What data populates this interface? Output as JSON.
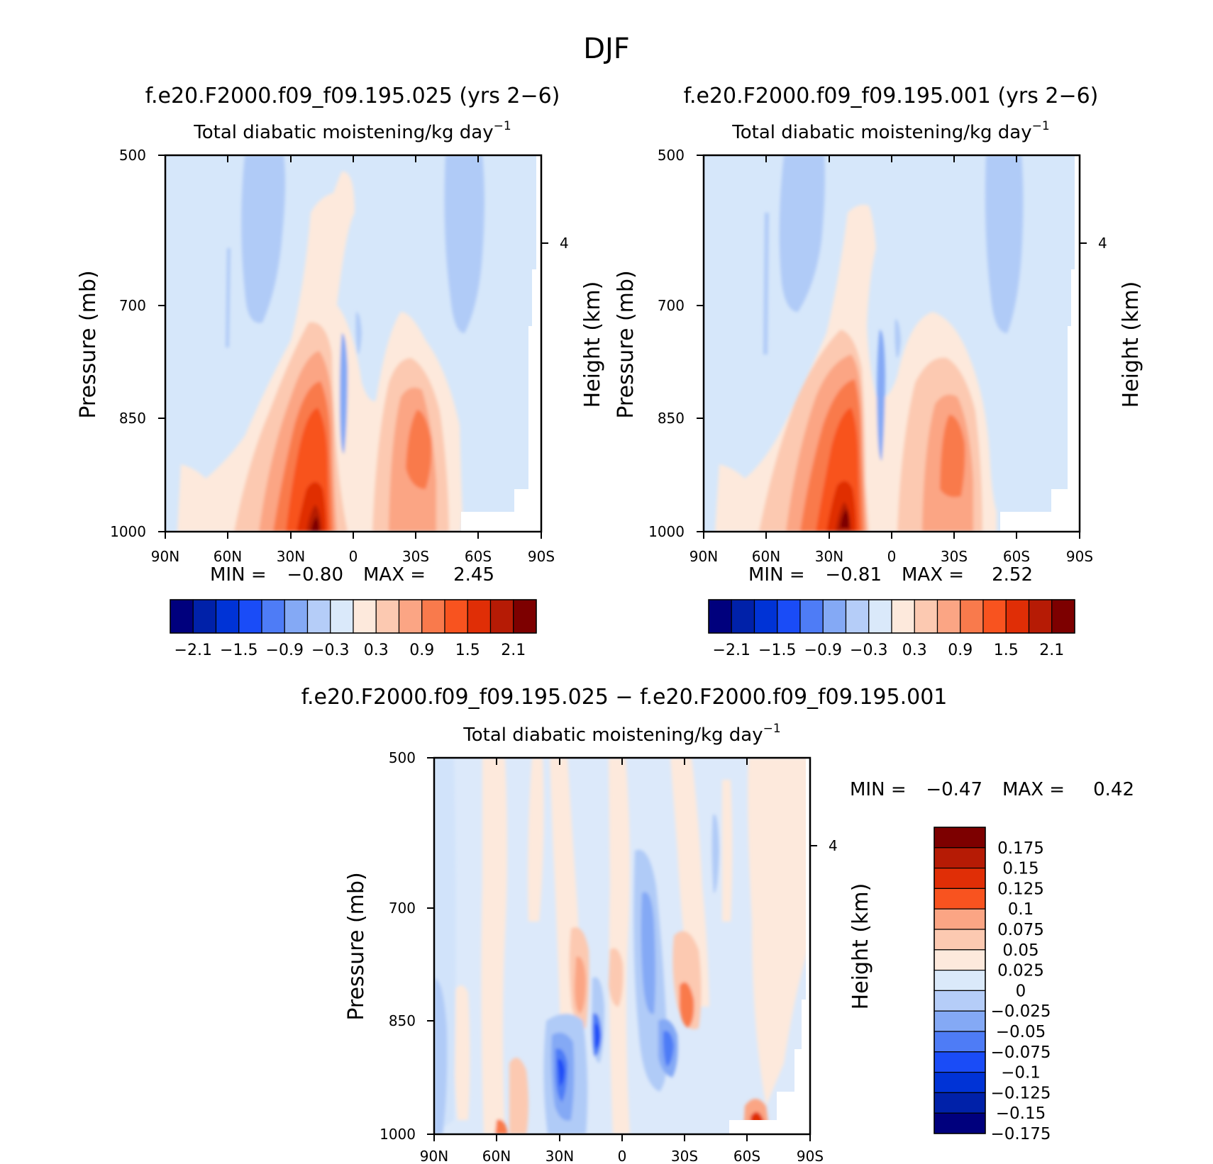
{
  "figure_title": "DJF",
  "chart_data": [
    {
      "type": "contour",
      "id": "panel-025",
      "title": "f.e20.F2000.f09_f09.195.025 (yrs 2−6)",
      "subtitle_text": "Total diabatic moistening/kg day",
      "subtitle_sup": "−1",
      "ylabel": "Pressure (mb)",
      "ylabel_right": "Height (km)",
      "x_ticks": [
        "90N",
        "60N",
        "30N",
        "0",
        "30S",
        "60S",
        "90S"
      ],
      "y_ticks": [
        "500",
        "700",
        "850",
        "1000"
      ],
      "ylim": [
        1000,
        500
      ],
      "right_ticks": [
        "4"
      ],
      "min_label": "MIN =",
      "min_value": "−0.80",
      "max_label": "MAX =",
      "max_value": "2.45",
      "colorbar_labels": [
        "−2.1",
        "−1.5",
        "−0.9",
        "−0.3",
        "0.3",
        "0.9",
        "1.5",
        "2.1"
      ],
      "colorbar_colors": [
        "#00007d",
        "#0021a9",
        "#0033d6",
        "#1a4cf7",
        "#4e7cf6",
        "#84a9f5",
        "#b5cdf8",
        "#dae9fa",
        "#fde9dc",
        "#fcc9b1",
        "#fba584",
        "#f97a4c",
        "#f8531f",
        "#e02e06",
        "#b61b05",
        "#7d0000"
      ]
    },
    {
      "type": "contour",
      "id": "panel-001",
      "title": "f.e20.F2000.f09_f09.195.001 (yrs 2−6)",
      "subtitle_text": "Total diabatic moistening/kg day",
      "subtitle_sup": "−1",
      "ylabel": "Pressure (mb)",
      "ylabel_right": "Height (km)",
      "x_ticks": [
        "90N",
        "60N",
        "30N",
        "0",
        "30S",
        "60S",
        "90S"
      ],
      "y_ticks": [
        "500",
        "700",
        "850",
        "1000"
      ],
      "ylim": [
        1000,
        500
      ],
      "right_ticks": [
        "4"
      ],
      "min_label": "MIN =",
      "min_value": "−0.81",
      "max_label": "MAX =",
      "max_value": "2.52",
      "colorbar_labels": [
        "−2.1",
        "−1.5",
        "−0.9",
        "−0.3",
        "0.3",
        "0.9",
        "1.5",
        "2.1"
      ],
      "colorbar_colors": [
        "#00007d",
        "#0021a9",
        "#0033d6",
        "#1a4cf7",
        "#4e7cf6",
        "#84a9f5",
        "#b5cdf8",
        "#dae9fa",
        "#fde9dc",
        "#fcc9b1",
        "#fba584",
        "#f97a4c",
        "#f8531f",
        "#e02e06",
        "#b61b05",
        "#7d0000"
      ]
    },
    {
      "type": "contour",
      "id": "panel-diff",
      "title": "f.e20.F2000.f09_f09.195.025 − f.e20.F2000.f09_f09.195.001",
      "subtitle_text": "Total diabatic moistening/kg day",
      "subtitle_sup": "−1",
      "ylabel": "Pressure (mb)",
      "ylabel_right": "Height (km)",
      "x_ticks": [
        "90N",
        "60N",
        "30N",
        "0",
        "30S",
        "60S",
        "90S"
      ],
      "y_ticks": [
        "500",
        "700",
        "850",
        "1000"
      ],
      "ylim": [
        1000,
        500
      ],
      "right_ticks": [
        "4"
      ],
      "min_label": "MIN =",
      "min_value": "−0.47",
      "max_label": "MAX =",
      "max_value": "0.42",
      "colorbar_labels": [
        "0.175",
        "0.15",
        "0.125",
        "0.1",
        "0.075",
        "0.05",
        "0.025",
        "0",
        "−0.025",
        "−0.05",
        "−0.075",
        "−0.1",
        "−0.125",
        "−0.15",
        "−0.175"
      ],
      "colorbar_colors": [
        "#7d0000",
        "#b61b05",
        "#e02e06",
        "#f8531f",
        "#fba584",
        "#fcc9b1",
        "#fde9dc",
        "#dae9fa",
        "#b5cdf8",
        "#84a9f5",
        "#4e7cf6",
        "#1a4cf7",
        "#0033d6",
        "#0021a9",
        "#00007d"
      ]
    }
  ]
}
